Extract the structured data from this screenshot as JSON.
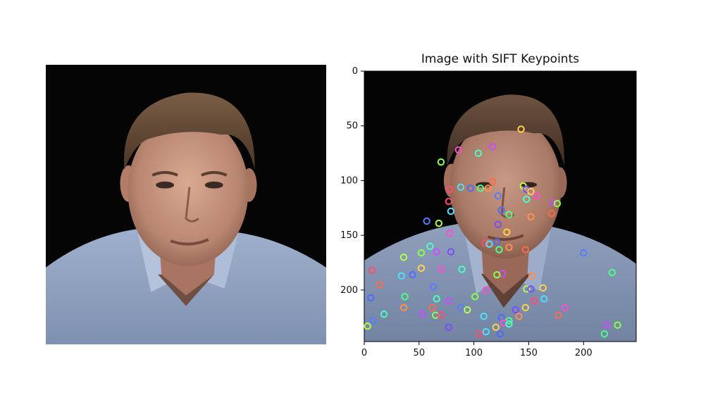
{
  "chart_data": {
    "type": "scatter",
    "title": "Image with SIFT Keypoints",
    "xlabel": "",
    "ylabel": "",
    "xlim": [
      0,
      248
    ],
    "ylim": [
      247,
      0
    ],
    "x_ticks": [
      "0",
      "50",
      "100",
      "150",
      "200"
    ],
    "y_ticks": [
      "0",
      "50",
      "100",
      "150",
      "200"
    ],
    "grid": false,
    "series": [
      {
        "marker": "circle-outline",
        "points": [
          [
            143,
            53
          ],
          [
            86,
            72
          ],
          [
            104,
            75
          ],
          [
            117,
            69
          ],
          [
            70,
            83
          ],
          [
            78,
            108
          ],
          [
            88,
            106
          ],
          [
            97,
            107
          ],
          [
            106,
            107
          ],
          [
            113,
            107
          ],
          [
            117,
            101
          ],
          [
            122,
            114
          ],
          [
            145,
            105
          ],
          [
            148,
            108
          ],
          [
            152,
            110
          ],
          [
            157,
            114
          ],
          [
            148,
            117
          ],
          [
            172,
            120
          ],
          [
            176,
            121
          ],
          [
            77,
            119
          ],
          [
            79,
            128
          ],
          [
            125,
            127
          ],
          [
            132,
            131
          ],
          [
            152,
            133
          ],
          [
            171,
            130
          ],
          [
            57,
            137
          ],
          [
            68,
            139
          ],
          [
            122,
            140
          ],
          [
            130,
            147
          ],
          [
            78,
            148
          ],
          [
            60,
            160
          ],
          [
            66,
            165
          ],
          [
            52,
            166
          ],
          [
            110,
            157
          ],
          [
            114,
            158
          ],
          [
            121,
            156
          ],
          [
            123,
            163
          ],
          [
            132,
            161
          ],
          [
            147,
            163
          ],
          [
            200,
            166
          ],
          [
            36,
            170
          ],
          [
            79,
            165
          ],
          [
            52,
            180
          ],
          [
            70,
            181
          ],
          [
            89,
            181
          ],
          [
            126,
            185
          ],
          [
            121,
            186
          ],
          [
            7,
            182
          ],
          [
            34,
            187
          ],
          [
            44,
            186
          ],
          [
            226,
            184
          ],
          [
            153,
            187
          ],
          [
            14,
            195
          ],
          [
            63,
            197
          ],
          [
            148,
            199
          ],
          [
            152,
            199
          ],
          [
            163,
            198
          ],
          [
            111,
            200
          ],
          [
            66,
            208
          ],
          [
            77,
            210
          ],
          [
            101,
            206
          ],
          [
            155,
            210
          ],
          [
            164,
            208
          ],
          [
            6,
            207
          ],
          [
            37,
            206
          ],
          [
            36,
            216
          ],
          [
            62,
            216
          ],
          [
            88,
            216
          ],
          [
            94,
            218
          ],
          [
            138,
            218
          ],
          [
            147,
            216
          ],
          [
            183,
            216
          ],
          [
            18,
            222
          ],
          [
            53,
            222
          ],
          [
            65,
            223
          ],
          [
            70,
            223
          ],
          [
            109,
            224
          ],
          [
            125,
            225
          ],
          [
            132,
            228
          ],
          [
            141,
            224
          ],
          [
            177,
            223
          ],
          [
            8,
            228
          ],
          [
            3,
            233
          ],
          [
            77,
            234
          ],
          [
            120,
            234
          ],
          [
            127,
            230
          ],
          [
            132,
            231
          ],
          [
            221,
            232
          ],
          [
            231,
            232
          ],
          [
            105,
            240
          ],
          [
            111,
            238
          ],
          [
            124,
            240
          ],
          [
            219,
            240
          ]
        ]
      }
    ]
  }
}
